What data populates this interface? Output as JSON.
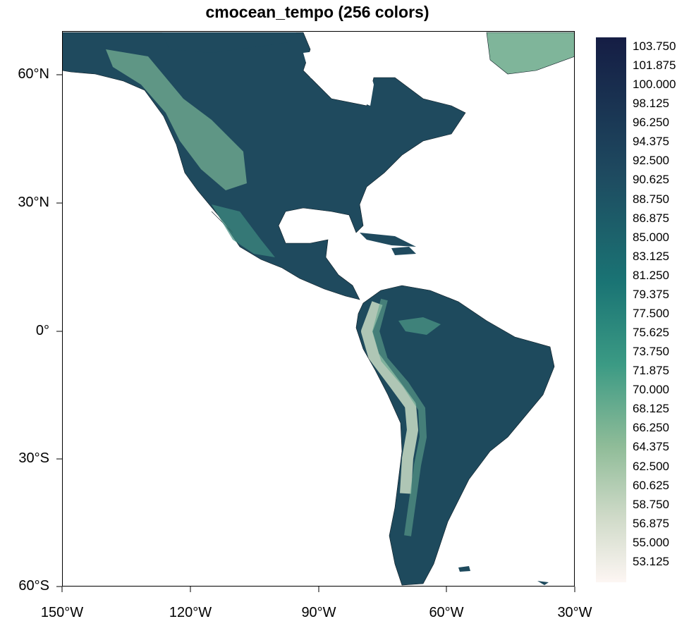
{
  "title": "cmocean_tempo (256 colors)",
  "map": {
    "lat_labels": [
      "60°N",
      "30°N",
      "0°",
      "30°S",
      "60°S"
    ],
    "lon_labels": [
      "150°W",
      "120°W",
      "90°W",
      "60°W",
      "30°W"
    ],
    "lon_range": [
      -150,
      -30
    ],
    "lat_range": [
      -60,
      70
    ]
  },
  "colorbar": {
    "colormap": "cmocean_tempo",
    "colors": {
      "low": "#fdf6f3",
      "mid_low": "#9dc2a0",
      "mid": "#208a80",
      "mid_high": "#1e5466",
      "high": "#151d44"
    },
    "labels": [
      "103.750",
      "101.875",
      "100.000",
      "98.125",
      "96.250",
      "94.375",
      "92.500",
      "90.625",
      "88.750",
      "86.875",
      "85.000",
      "83.125",
      "81.250",
      "79.375",
      "77.500",
      "75.625",
      "73.750",
      "71.875",
      "70.000",
      "68.125",
      "66.250",
      "64.375",
      "62.500",
      "60.625",
      "58.750",
      "56.875",
      "55.000",
      "53.125"
    ]
  }
}
